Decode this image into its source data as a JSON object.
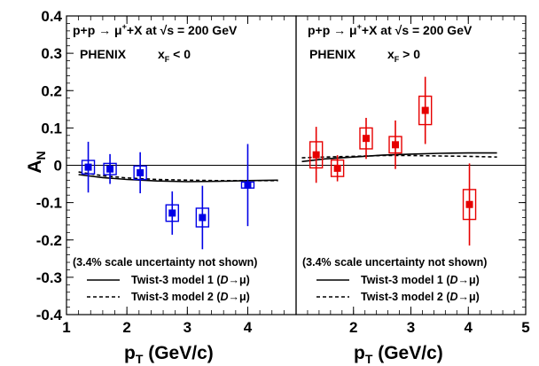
{
  "chart_data": [
    {
      "type": "scatter",
      "panel": "left",
      "title_line1": "p+p → μ⁺+X at √s = 200 GeV",
      "experiment": "PHENIX",
      "selection": "x_F < 0",
      "xlabel": "p_T (GeV/c)",
      "ylabel": "A_N",
      "xlim": [
        1.0,
        4.8
      ],
      "ylim": [
        -0.4,
        0.4
      ],
      "x_ticks": [
        "1",
        "2",
        "3",
        "4"
      ],
      "y_ticks": [
        "0.4",
        "0.3",
        "0.2",
        "0.1",
        "0",
        "-0.1",
        "-0.2",
        "-0.3",
        "-0.4"
      ],
      "note": "(3.4% scale uncertainty not shown)",
      "data_color": "#0000e6",
      "series": [
        {
          "name": "PHENIX data",
          "points": [
            {
              "x": 1.36,
              "y": -0.005,
              "stat": 0.068,
              "sys": 0.018
            },
            {
              "x": 1.72,
              "y": -0.01,
              "stat": 0.04,
              "sys": 0.015
            },
            {
              "x": 2.22,
              "y": -0.02,
              "stat": 0.055,
              "sys": 0.018
            },
            {
              "x": 2.75,
              "y": -0.128,
              "stat": 0.058,
              "sys": 0.022
            },
            {
              "x": 3.25,
              "y": -0.14,
              "stat": 0.085,
              "sys": 0.025
            },
            {
              "x": 4.0,
              "y": -0.053,
              "stat": 0.11,
              "sys": 0.008
            }
          ]
        },
        {
          "name": "Twist-3 model 1 (D→μ)",
          "line": "solid",
          "curve": [
            [
              1.2,
              -0.025
            ],
            [
              1.6,
              -0.033
            ],
            [
              2.0,
              -0.038
            ],
            [
              2.5,
              -0.042
            ],
            [
              3.0,
              -0.044
            ],
            [
              3.5,
              -0.043
            ],
            [
              4.0,
              -0.041
            ],
            [
              4.5,
              -0.04
            ]
          ]
        },
        {
          "name": "Twist-3 model 2 (D→μ)",
          "line": "dashed",
          "curve": [
            [
              1.2,
              -0.018
            ],
            [
              1.6,
              -0.028
            ],
            [
              2.0,
              -0.034
            ],
            [
              2.5,
              -0.038
            ],
            [
              3.0,
              -0.04
            ],
            [
              3.5,
              -0.041
            ],
            [
              4.0,
              -0.041
            ],
            [
              4.5,
              -0.041
            ]
          ]
        }
      ]
    },
    {
      "type": "scatter",
      "panel": "right",
      "title_line1": "p+p → μ⁺+X at √s = 200 GeV",
      "experiment": "PHENIX",
      "selection": "x_F > 0",
      "xlabel": "p_T (GeV/c)",
      "ylabel": "",
      "xlim": [
        1.0,
        5.0
      ],
      "ylim": [
        -0.4,
        0.4
      ],
      "x_ticks": [
        "2",
        "3",
        "4",
        "5"
      ],
      "note": "(3.4% scale uncertainty not shown)",
      "data_color": "#e60000",
      "series": [
        {
          "name": "PHENIX data",
          "points": [
            {
              "x": 1.35,
              "y": 0.028,
              "stat": 0.075,
              "sys": 0.035
            },
            {
              "x": 1.72,
              "y": -0.008,
              "stat": 0.035,
              "sys": 0.022
            },
            {
              "x": 2.22,
              "y": 0.072,
              "stat": 0.055,
              "sys": 0.028
            },
            {
              "x": 2.73,
              "y": 0.055,
              "stat": 0.065,
              "sys": 0.022
            },
            {
              "x": 3.25,
              "y": 0.147,
              "stat": 0.09,
              "sys": 0.038
            },
            {
              "x": 4.02,
              "y": -0.105,
              "stat": 0.11,
              "sys": 0.04
            }
          ]
        },
        {
          "name": "Twist-3 model 1 (D→μ)",
          "line": "solid",
          "curve": [
            [
              1.1,
              0.01
            ],
            [
              1.5,
              0.017
            ],
            [
              2.0,
              0.022
            ],
            [
              2.5,
              0.027
            ],
            [
              3.0,
              0.03
            ],
            [
              3.5,
              0.032
            ],
            [
              4.0,
              0.033
            ],
            [
              4.5,
              0.033
            ]
          ]
        },
        {
          "name": "Twist-3 model 2 (D→μ)",
          "line": "dashed",
          "curve": [
            [
              1.1,
              0.02
            ],
            [
              1.5,
              0.022
            ],
            [
              2.0,
              0.024
            ],
            [
              2.5,
              0.026
            ],
            [
              3.0,
              0.026
            ],
            [
              3.5,
              0.025
            ],
            [
              4.0,
              0.024
            ],
            [
              4.5,
              0.022
            ]
          ]
        }
      ]
    }
  ],
  "legend": {
    "model1_prefix": "Twist-3 model 1 (",
    "model1_d": "D",
    "model1_suffix": "→μ)",
    "model2_prefix": "Twist-3 model 2 (",
    "model2_d": "D",
    "model2_suffix": "→μ)"
  }
}
